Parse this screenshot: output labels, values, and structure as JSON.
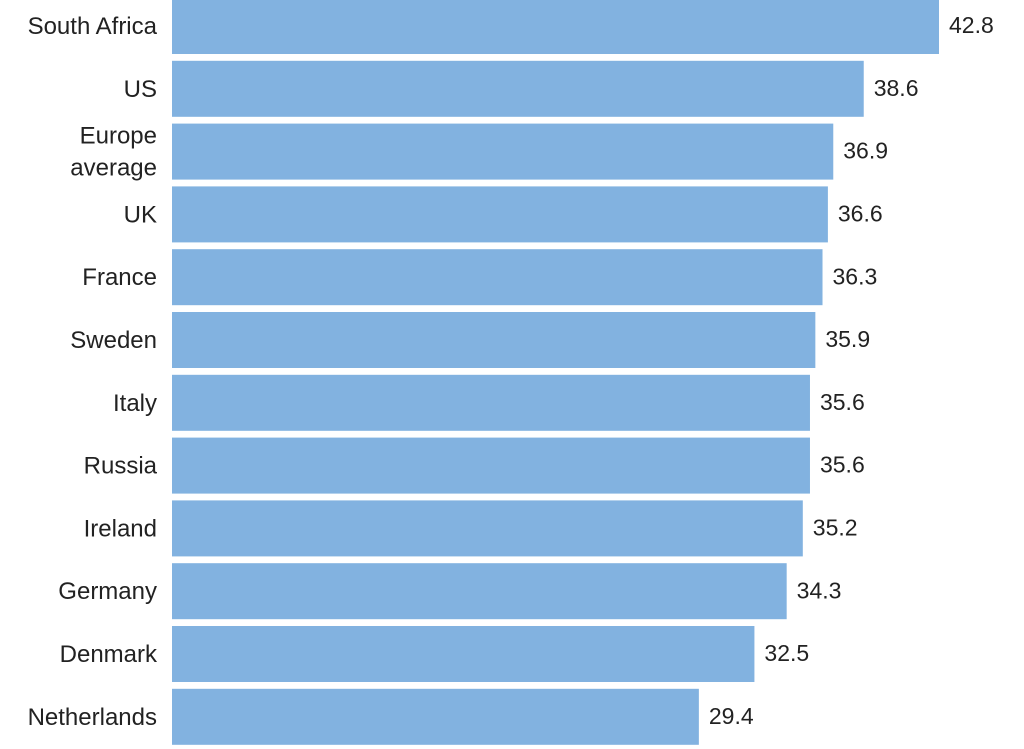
{
  "chart_data": {
    "type": "bar",
    "orientation": "horizontal",
    "categories": [
      "South Africa",
      "US",
      "Europe average",
      "UK",
      "France",
      "Sweden",
      "Italy",
      "Russia",
      "Ireland",
      "Germany",
      "Denmark",
      "Netherlands"
    ],
    "category_label_lines": [
      [
        "South Africa"
      ],
      [
        "US"
      ],
      [
        "Europe",
        "average"
      ],
      [
        "UK"
      ],
      [
        "France"
      ],
      [
        "Sweden"
      ],
      [
        "Italy"
      ],
      [
        "Russia"
      ],
      [
        "Ireland"
      ],
      [
        "Germany"
      ],
      [
        "Denmark"
      ],
      [
        "Netherlands"
      ]
    ],
    "values": [
      42.8,
      38.6,
      36.9,
      36.6,
      36.3,
      35.9,
      35.6,
      35.6,
      35.2,
      34.3,
      32.5,
      29.4
    ],
    "data_labels": [
      "42.8",
      "38.6",
      "36.9",
      "36.6",
      "36.3",
      "35.9",
      "35.6",
      "35.6",
      "35.2",
      "34.3",
      "32.5",
      "29.4"
    ],
    "xlim": [
      0,
      42.8
    ],
    "grid": false,
    "legend": "none",
    "bar_color": "#82b2e0",
    "text_color": "#222222"
  }
}
